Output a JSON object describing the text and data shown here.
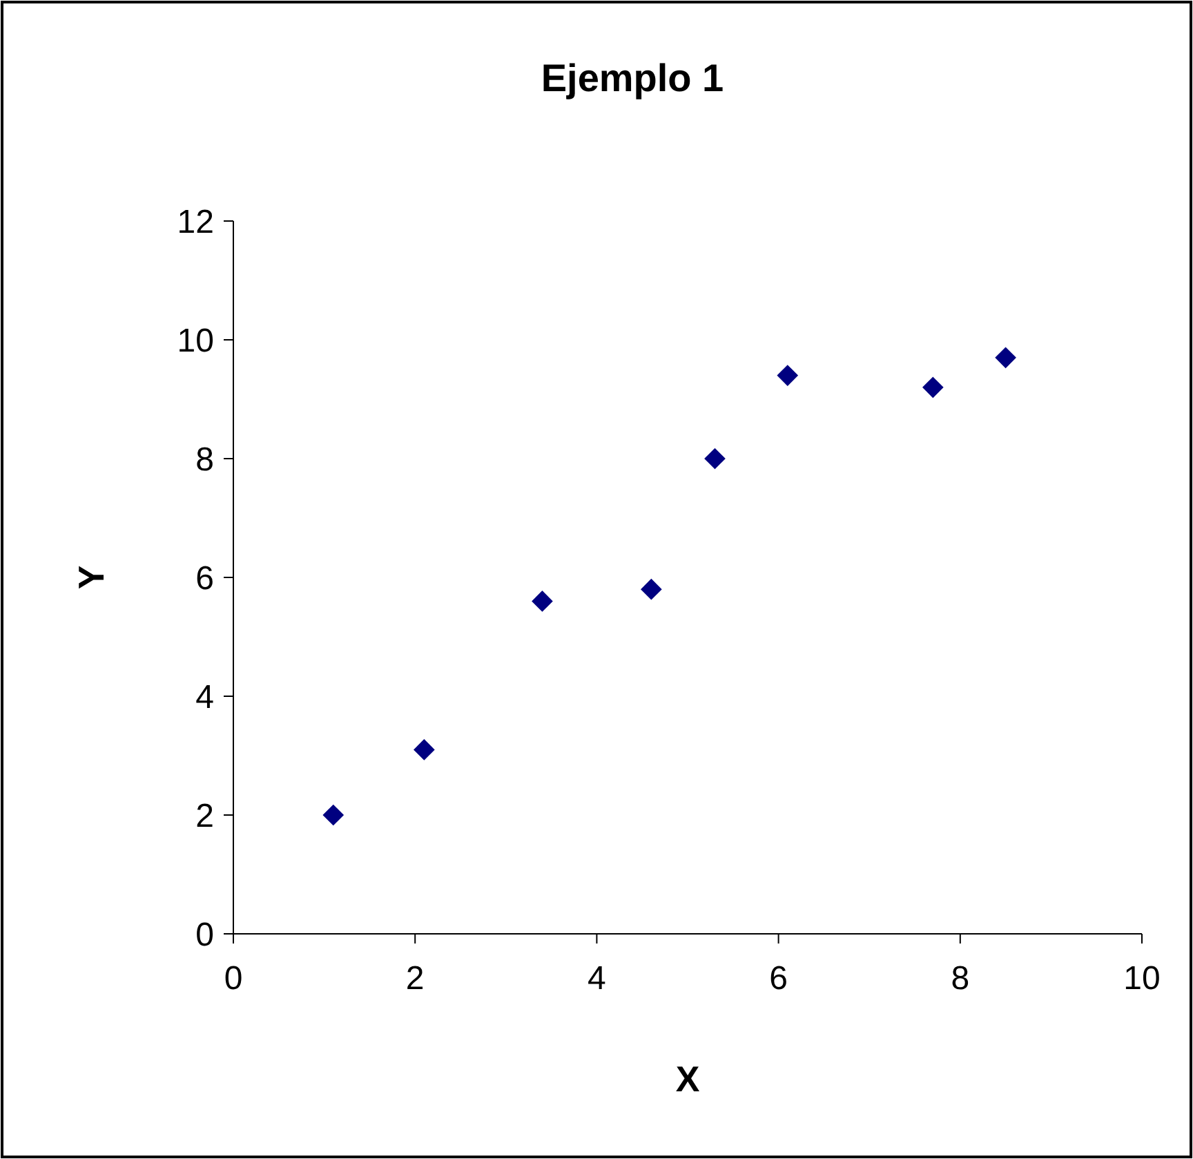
{
  "chart_data": {
    "type": "scatter",
    "title": "Ejemplo 1",
    "xlabel": "X",
    "ylabel": "Y",
    "x": [
      1.1,
      2.1,
      3.4,
      4.6,
      5.3,
      6.1,
      7.7,
      8.5
    ],
    "series": [
      {
        "color": "#000080",
        "values": [
          2.0,
          3.1,
          5.6,
          5.8,
          8.0,
          9.4,
          9.2,
          9.7
        ]
      }
    ],
    "xlim": [
      0,
      10
    ],
    "xticks": [
      0,
      2,
      4,
      6,
      8,
      10
    ],
    "ylim": [
      0,
      12
    ],
    "yticks": [
      0,
      2,
      4,
      6,
      8,
      10,
      12
    ],
    "marker": "diamond",
    "grid": false
  }
}
